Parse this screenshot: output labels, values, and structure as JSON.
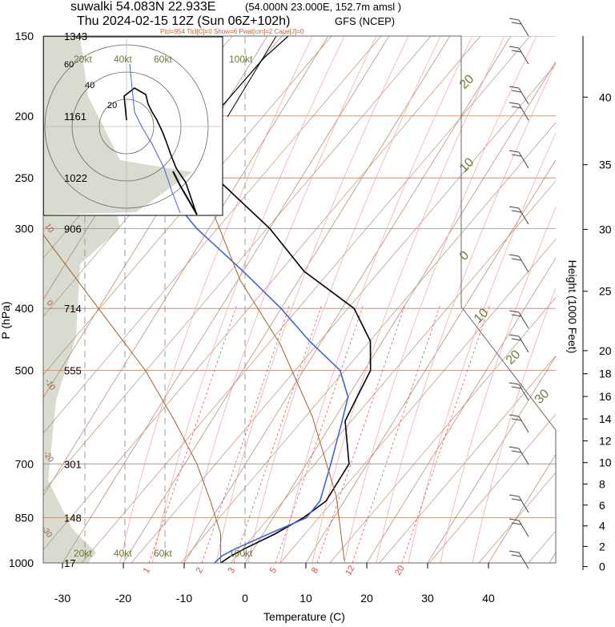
{
  "header": {
    "station": "suwalki 54.083N 22.933E",
    "location": "(54.000N 23.000E, 152.7m amsl )",
    "time": "Thu 2024-02-15 12Z (Sun 06Z+102h)",
    "model": "GFS (NCEP)",
    "indices": "Plcl=954 Tlcl[C]=0 Show=6 Pwat[cm]=2 Cape[J]=0"
  },
  "colors": {
    "isotherm": "#b08060",
    "dry_adiabat": "#f08080",
    "moist_adiabat": "#f0a0a0",
    "mixing_ratio": "#e04040",
    "isobar": "#c08060",
    "temperature": "#000000",
    "dewpoint": "#4060e0",
    "parcel": "#a06030",
    "cape_shading": "#d8dcd0",
    "label_green": "#6b7b3a"
  },
  "chart_data": {
    "type": "line",
    "subtype": "skew-T log-P sounding",
    "xlabel": "Temperature (C)",
    "ylabel": "P (hPa)",
    "y2label": "Height (1000 Feet)",
    "x_ticks": [
      -30,
      -20,
      -10,
      0,
      10,
      20,
      30,
      40
    ],
    "pressure_levels": [
      150,
      200,
      250,
      300,
      400,
      500,
      700,
      850,
      1000
    ],
    "height_labels_m": [
      "1343",
      "1161",
      "1022",
      "906",
      "714",
      "555",
      "301",
      "148",
      "17"
    ],
    "height_ft_ticks": [
      0,
      2,
      4,
      6,
      8,
      10,
      12,
      14,
      16,
      18,
      20,
      25,
      30,
      35,
      40
    ],
    "mixing_ratio_labels": [
      "1",
      "2",
      "3",
      "5",
      "8",
      "12",
      "20"
    ],
    "isotherm_labels_right": [
      "20",
      "10",
      "0",
      "10",
      "20",
      "30"
    ],
    "isotherm_labels_left": [
      "10",
      "0",
      "-10",
      "-20",
      "-30"
    ],
    "hodograph": {
      "ring_labels": [
        "20",
        "40",
        "60"
      ],
      "speed_labels": [
        "20kt",
        "40kt",
        "60kt",
        "100kt"
      ]
    },
    "series": [
      {
        "role": "temperature",
        "x": [
          -4,
          -3,
          -1.5,
          2,
          5,
          7,
          7,
          2,
          1.5,
          1,
          -2,
          -8,
          -20,
          -30,
          -44,
          -56,
          -60
        ],
        "y": [
          1000,
          975,
          950,
          900,
          850,
          800,
          700,
          600,
          550,
          500,
          450,
          400,
          350,
          300,
          250,
          200,
          150
        ]
      },
      {
        "role": "dewpoint",
        "x": [
          -5,
          -4.5,
          -3,
          1,
          5.5,
          6,
          4,
          1.5,
          0,
          -4,
          -12,
          -20,
          -30,
          -42,
          -54,
          -64,
          -72
        ],
        "y": [
          1000,
          975,
          950,
          900,
          850,
          800,
          700,
          600,
          550,
          500,
          450,
          400,
          350,
          300,
          250,
          200,
          150
        ]
      },
      {
        "role": "parcel",
        "x": [
          -4,
          -7,
          -12,
          -18,
          -26,
          -36,
          -50,
          -68
        ],
        "y": [
          1000,
          900,
          800,
          700,
          600,
          500,
          400,
          300
        ]
      }
    ]
  }
}
